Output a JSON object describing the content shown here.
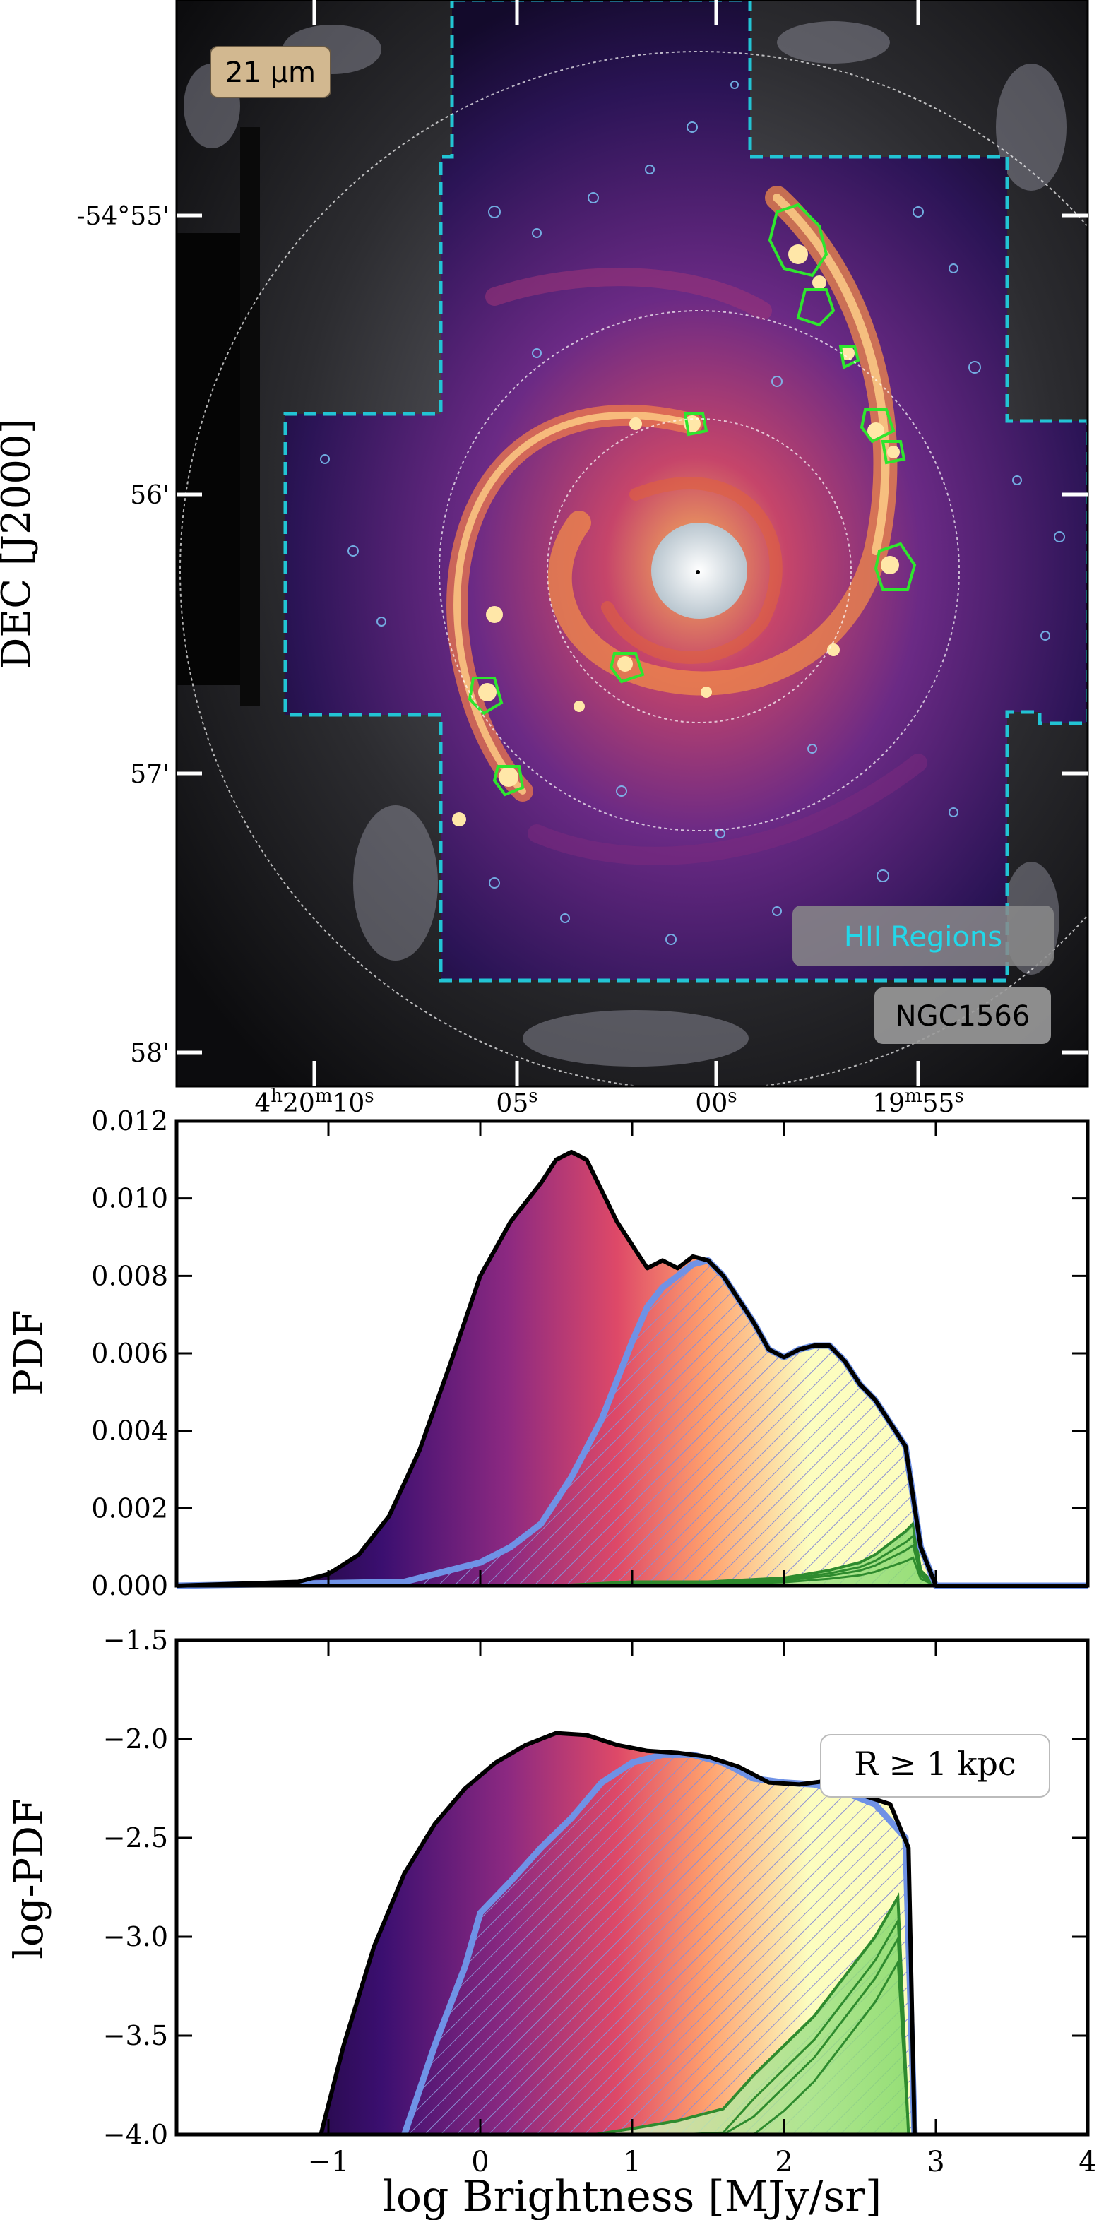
{
  "image_panel": {
    "band_label": "21 μm",
    "hii_label": "HII Regions",
    "galaxy_label": "NGC1566",
    "ylabel": "DEC [J2000]",
    "dec_ticks": [
      "-54°55'",
      "56'",
      "57'",
      "58'"
    ],
    "ra_ticks": [
      {
        "main": "4",
        "h": "h",
        "mm": "20",
        "m": "m",
        "ss": "10",
        "s": "s"
      },
      {
        "main": "",
        "h": "",
        "mm": "",
        "m": "",
        "ss": "05",
        "s": "s"
      },
      {
        "main": "",
        "h": "",
        "mm": "",
        "m": "",
        "ss": "00",
        "s": "s"
      },
      {
        "main": "",
        "h": "",
        "mm": "19",
        "m": "m",
        "ss": "55",
        "s": "s"
      }
    ],
    "colors": {
      "footprint": "#22c4d4",
      "hii_contour": "#7fd0ff",
      "bright_hii": "#2ee62e"
    }
  },
  "chart_data": [
    {
      "type": "area",
      "ylabel": "PDF",
      "xlabel": "",
      "xlim": [
        -2,
        4
      ],
      "ylim": [
        0,
        0.012
      ],
      "yticks": [
        "0.000",
        "0.002",
        "0.004",
        "0.006",
        "0.008",
        "0.010",
        "0.012"
      ],
      "series": [
        {
          "x": [
            -2,
            -1.2,
            -1.0,
            -0.8,
            -0.6,
            -0.4,
            -0.2,
            0.0,
            0.2,
            0.4,
            0.5,
            0.6,
            0.7,
            0.8,
            0.9,
            1.0,
            1.1,
            1.2,
            1.3,
            1.4,
            1.5,
            1.6,
            1.7,
            1.8,
            1.9,
            2.0,
            2.1,
            2.2,
            2.3,
            2.4,
            2.5,
            2.6,
            2.7,
            2.8,
            2.9,
            3.0,
            4.0
          ],
          "y": [
            0,
            0.0001,
            0.0003,
            0.0008,
            0.0018,
            0.0035,
            0.0057,
            0.008,
            0.0094,
            0.0104,
            0.011,
            0.0112,
            0.011,
            0.0102,
            0.0094,
            0.0088,
            0.0082,
            0.0084,
            0.0082,
            0.0085,
            0.0084,
            0.008,
            0.0074,
            0.0068,
            0.0061,
            0.0059,
            0.0061,
            0.0062,
            0.0062,
            0.0058,
            0.0052,
            0.0048,
            0.0042,
            0.0036,
            0.001,
            0.0,
            0.0
          ]
        },
        {
          "x": [
            -2,
            -0.5,
            0.0,
            0.2,
            0.4,
            0.6,
            0.8,
            1.0,
            1.1,
            1.2,
            1.3,
            1.4,
            1.5,
            1.6,
            1.7,
            1.8,
            1.9,
            2.0,
            2.1,
            2.2,
            2.3,
            2.4,
            2.5,
            2.6,
            2.7,
            2.8,
            2.9,
            3.0,
            4.0
          ],
          "y": [
            0,
            0.0001,
            0.0006,
            0.001,
            0.0016,
            0.0028,
            0.0043,
            0.0063,
            0.0072,
            0.0077,
            0.008,
            0.0083,
            0.0084,
            0.008,
            0.0074,
            0.0068,
            0.0061,
            0.0059,
            0.0061,
            0.0062,
            0.0062,
            0.0058,
            0.0052,
            0.0048,
            0.0042,
            0.0036,
            0.001,
            0.0,
            0.0
          ]
        },
        {
          "x": [
            0.5,
            1.0,
            1.5,
            2.0,
            2.3,
            2.5,
            2.6,
            2.7,
            2.8,
            2.85,
            2.9,
            3.0
          ],
          "y": [
            0.0,
            0.0001,
            0.0001,
            0.0002,
            0.0004,
            0.0006,
            0.0008,
            0.0011,
            0.0014,
            0.0016,
            0.0004,
            0.0
          ]
        }
      ]
    },
    {
      "type": "area",
      "ylabel": "log-PDF",
      "xlabel": "log Brightness [MJy/sr]",
      "xlim": [
        -2,
        4
      ],
      "ylim": [
        -4.0,
        -1.5
      ],
      "xticks": [
        "−1",
        "0",
        "1",
        "2",
        "3",
        "4"
      ],
      "yticks": [
        "−4.0",
        "−3.5",
        "−3.0",
        "−2.5",
        "−2.0",
        "−1.5"
      ],
      "annotation": "R ≥ 1 kpc",
      "series": [
        {
          "x": [
            -1.05,
            -0.9,
            -0.7,
            -0.5,
            -0.3,
            -0.1,
            0.1,
            0.3,
            0.5,
            0.7,
            0.9,
            1.1,
            1.3,
            1.5,
            1.7,
            1.9,
            2.1,
            2.3,
            2.5,
            2.7,
            2.82,
            2.86
          ],
          "y": [
            -4.0,
            -3.55,
            -3.05,
            -2.68,
            -2.43,
            -2.25,
            -2.12,
            -2.03,
            -1.97,
            -1.98,
            -2.03,
            -2.06,
            -2.07,
            -2.09,
            -2.14,
            -2.22,
            -2.23,
            -2.21,
            -2.28,
            -2.33,
            -2.55,
            -4.0
          ]
        },
        {
          "x": [
            -0.5,
            -0.3,
            -0.1,
            0.0,
            0.2,
            0.4,
            0.6,
            0.8,
            1.0,
            1.2,
            1.4,
            1.6,
            1.8,
            2.0,
            2.2,
            2.4,
            2.6,
            2.8,
            2.86
          ],
          "y": [
            -4.0,
            -3.55,
            -3.15,
            -2.88,
            -2.72,
            -2.55,
            -2.4,
            -2.22,
            -2.12,
            -2.08,
            -2.08,
            -2.12,
            -2.2,
            -2.22,
            -2.23,
            -2.27,
            -2.33,
            -2.5,
            -4.0
          ]
        },
        {
          "x": [
            0.75,
            1.0,
            1.3,
            1.6,
            1.8,
            2.0,
            2.2,
            2.4,
            2.6,
            2.75,
            2.82
          ],
          "y": [
            -4.0,
            -3.97,
            -3.93,
            -3.87,
            -3.7,
            -3.55,
            -3.4,
            -3.2,
            -3.0,
            -2.8,
            -4.0
          ]
        }
      ]
    }
  ]
}
